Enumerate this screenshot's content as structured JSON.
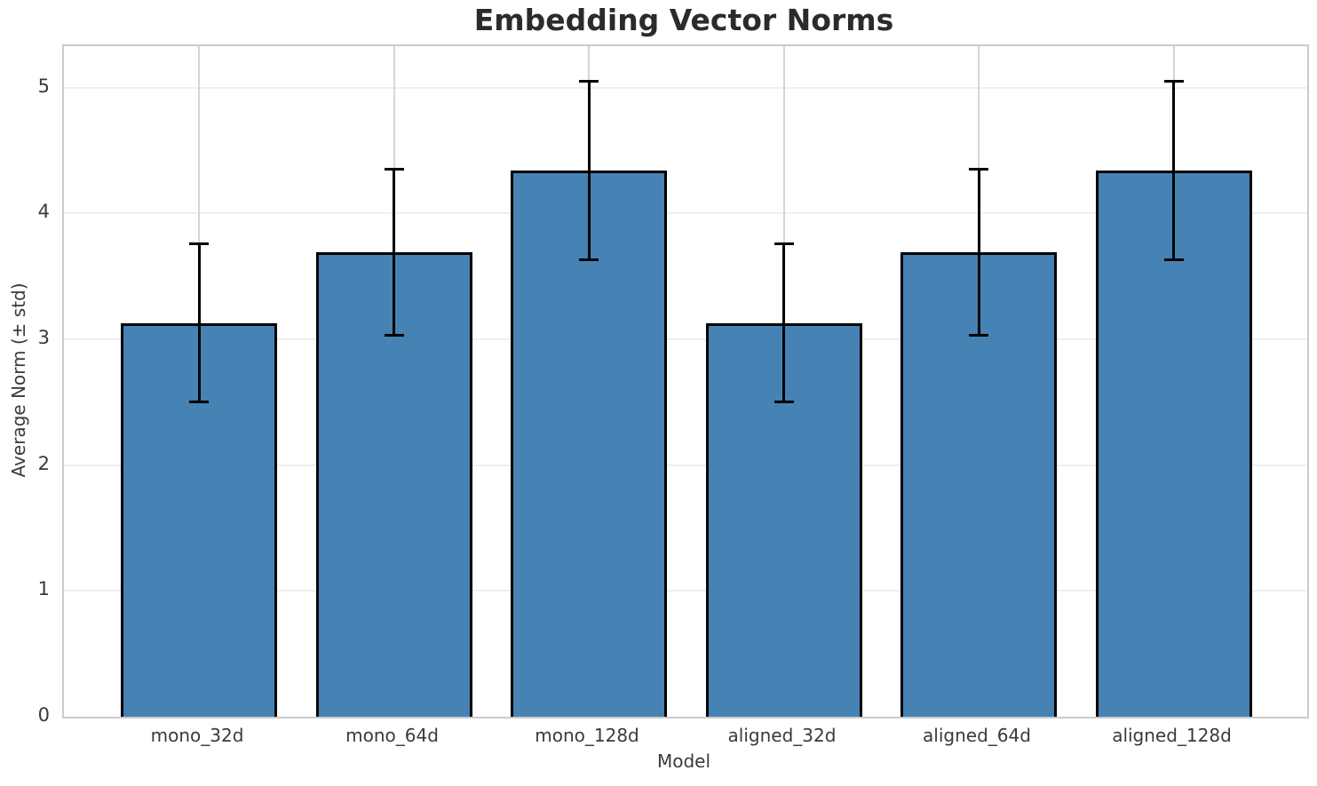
{
  "chart_data": {
    "type": "bar",
    "title": "Embedding Vector Norms",
    "xlabel": "Model",
    "ylabel": "Average Norm (± std)",
    "categories": [
      "mono_32d",
      "mono_64d",
      "mono_128d",
      "aligned_32d",
      "aligned_64d",
      "aligned_128d"
    ],
    "series": [
      {
        "name": "Average Norm",
        "values": [
          3.13,
          3.69,
          4.34,
          3.13,
          3.69,
          4.34
        ],
        "errors": [
          0.63,
          0.66,
          0.71,
          0.63,
          0.66,
          0.71
        ]
      }
    ],
    "yticks": [
      0,
      1,
      2,
      3,
      4,
      5
    ],
    "ylim": [
      0,
      5.33
    ],
    "grid": true,
    "legend": false,
    "colors": {
      "bar_fill": "#4682B4",
      "bar_edge": "#000000",
      "error_bar": "#000000",
      "grid_horizontal": "#efefef",
      "grid_vertical": "#d6d6d6",
      "spine": "#cbcbcb",
      "tick_text": "#3a3a3a",
      "title_text": "#2b2b2b"
    }
  }
}
